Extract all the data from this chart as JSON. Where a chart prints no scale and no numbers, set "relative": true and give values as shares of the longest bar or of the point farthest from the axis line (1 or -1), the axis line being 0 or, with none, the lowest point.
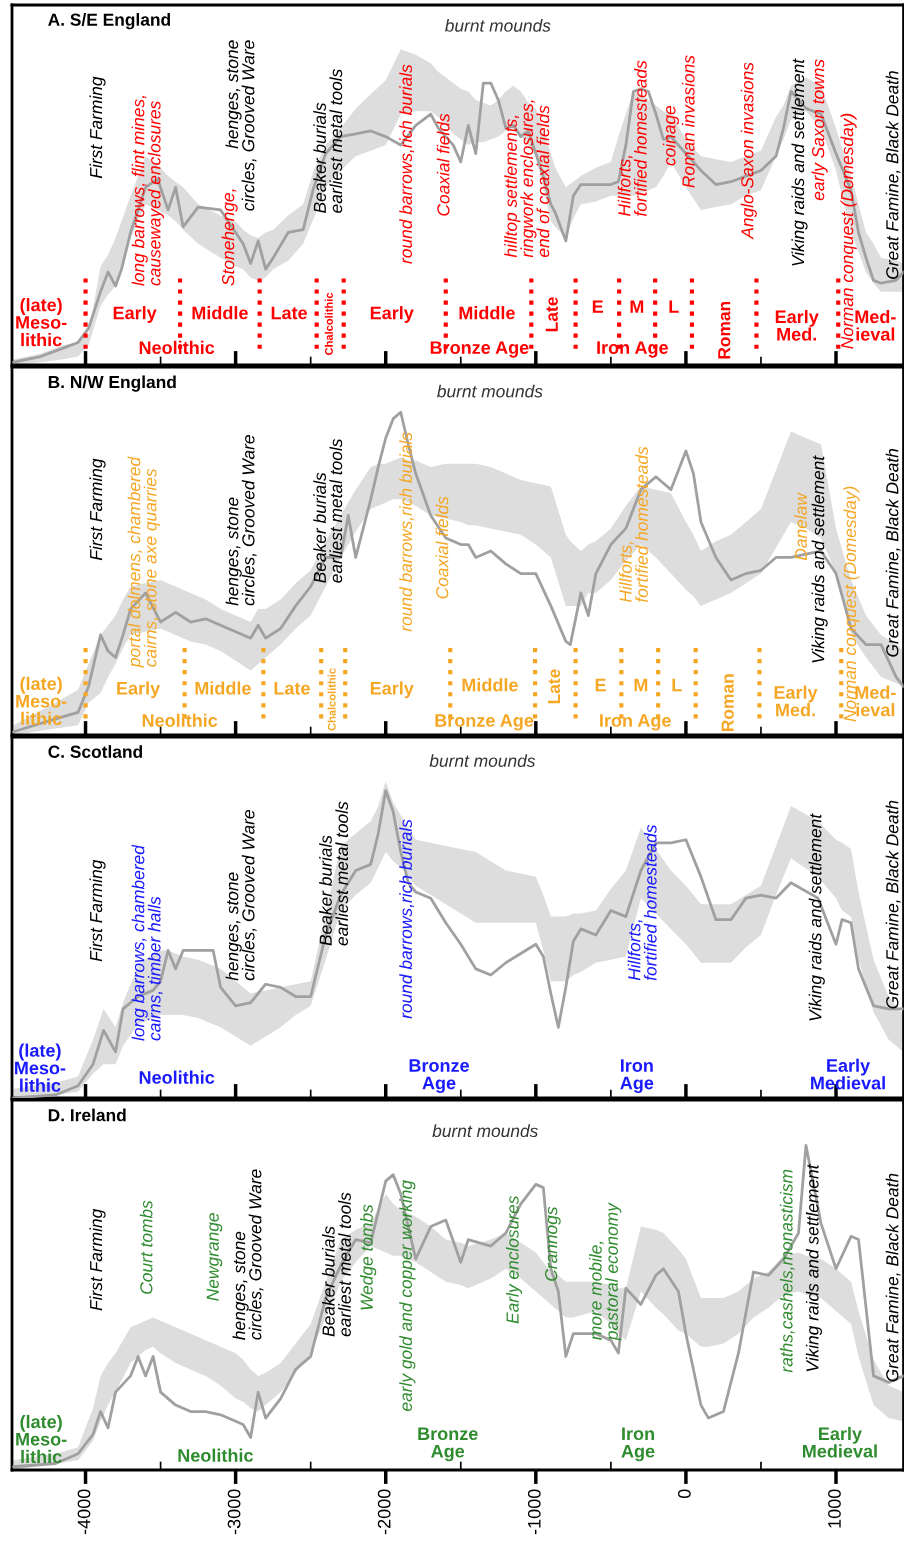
{
  "chart_data": [
    {
      "type": "line",
      "title": "A. S/E England",
      "relative": true,
      "xlim": [
        -4490,
        1450
      ],
      "xticks": [
        -4000,
        {
          "value": -3500,
          "label": null
        },
        -3000,
        {
          "value": -2500,
          "label": null
        },
        -2000,
        {
          "value": -1500,
          "label": null
        },
        -1000,
        {
          "value": -500,
          "label": null
        },
        0,
        {
          "value": 500,
          "label": null
        },
        1000
      ],
      "tick_labels": false,
      "series": [
        {
          "color": "#a0a0a0",
          "x": [
            -4480,
            -4300,
            -4150,
            -4050,
            -3980,
            -3900,
            -3850,
            -3800,
            -3760,
            -3700,
            -3600,
            -3520,
            -3450,
            -3400,
            -3350,
            -3250,
            -3100,
            -3000,
            -2950,
            -2900,
            -2850,
            -2800,
            -2750,
            -2650,
            -2550,
            -2480,
            -2400,
            -2300,
            -2200,
            -2100,
            -2000,
            -1900,
            -1800,
            -1700,
            -1650,
            -1550,
            -1500,
            -1450,
            -1400,
            -1350,
            -1300,
            -1250,
            -1200,
            -1150,
            -1100,
            -1050,
            -1000,
            -950,
            -900,
            -870,
            -800,
            -750,
            -700,
            -600,
            -500,
            -450,
            -400,
            -350,
            -300,
            -250,
            -200,
            -150,
            -100,
            0,
            100,
            200,
            300,
            400,
            500,
            600,
            650,
            700,
            800,
            900,
            1000,
            1100,
            1150,
            1200,
            1250,
            1300,
            1400,
            1450
          ],
          "values": [
            0.01,
            0.03,
            0.06,
            0.08,
            0.13,
            0.26,
            0.33,
            0.28,
            0.34,
            0.47,
            0.63,
            0.66,
            0.55,
            0.63,
            0.49,
            0.56,
            0.55,
            0.47,
            0.43,
            0.36,
            0.44,
            0.34,
            0.38,
            0.47,
            0.48,
            0.63,
            0.75,
            0.81,
            0.82,
            0.83,
            0.81,
            0.78,
            0.85,
            0.89,
            0.84,
            0.78,
            0.72,
            0.85,
            0.75,
            1.0,
            1.0,
            0.94,
            0.84,
            0.85,
            0.81,
            0.83,
            0.75,
            0.67,
            0.57,
            0.54,
            0.44,
            0.6,
            0.64,
            0.64,
            0.64,
            0.65,
            0.78,
            0.97,
            0.98,
            0.97,
            0.89,
            0.8,
            0.81,
            0.75,
            0.69,
            0.64,
            0.65,
            0.67,
            0.69,
            0.74,
            0.84,
            0.97,
            0.91,
            0.89,
            0.75,
            0.62,
            0.47,
            0.38,
            0.3,
            0.29,
            0.3,
            0.33
          ],
          "lower": [
            0.0,
            0.01,
            0.02,
            0.03,
            0.07,
            0.21,
            0.25,
            0.28,
            0.35,
            0.45,
            0.57,
            0.55,
            0.53,
            0.51,
            0.48,
            0.43,
            0.38,
            0.35,
            0.34,
            0.31,
            0.3,
            0.31,
            0.34,
            0.37,
            0.43,
            0.52,
            0.63,
            0.69,
            0.74,
            0.76,
            0.78,
            0.89,
            0.9,
            0.9,
            0.88,
            0.82,
            0.8,
            0.78,
            0.79,
            0.79,
            0.8,
            0.81,
            0.83,
            0.84,
            0.81,
            0.78,
            0.74,
            0.63,
            0.51,
            0.49,
            0.45,
            0.52,
            0.57,
            0.58,
            0.6,
            0.6,
            0.6,
            0.6,
            0.61,
            0.62,
            0.63,
            0.67,
            0.72,
            0.63,
            0.55,
            0.56,
            0.57,
            0.6,
            0.62,
            0.74,
            0.8,
            0.87,
            0.9,
            0.84,
            0.69,
            0.47,
            0.4,
            0.33,
            0.29,
            0.26,
            0.26,
            0.26
          ],
          "upper": [
            0.02,
            0.04,
            0.07,
            0.08,
            0.11,
            0.35,
            0.39,
            0.45,
            0.51,
            0.6,
            0.74,
            0.71,
            0.67,
            0.65,
            0.63,
            0.57,
            0.53,
            0.51,
            0.48,
            0.46,
            0.45,
            0.47,
            0.48,
            0.53,
            0.57,
            0.69,
            0.78,
            0.84,
            0.91,
            0.96,
            1.01,
            1.12,
            1.1,
            1.07,
            1.04,
            1.0,
            0.98,
            0.97,
            0.94,
            0.93,
            0.92,
            0.94,
            0.97,
            0.99,
            0.97,
            0.93,
            0.91,
            0.83,
            0.75,
            0.7,
            0.63,
            0.65,
            0.67,
            0.7,
            0.72,
            0.81,
            0.89,
            0.97,
            0.96,
            0.94,
            0.92,
            0.9,
            0.89,
            0.8,
            0.74,
            0.73,
            0.72,
            0.74,
            0.76,
            0.88,
            0.92,
            0.99,
            1.02,
            0.99,
            0.84,
            0.67,
            0.57,
            0.47,
            0.43,
            0.38,
            0.37,
            0.36
          ]
        }
      ],
      "ref_lines": [
        {
          "axis": "x",
          "value": -4000,
          "color": "#ff0000",
          "line_style": "dotted"
        },
        {
          "axis": "x",
          "value": -3370,
          "color": "#ff0000",
          "line_style": "dotted"
        },
        {
          "axis": "x",
          "value": -2840,
          "color": "#ff0000",
          "line_style": "dotted"
        },
        {
          "axis": "x",
          "value": -2460,
          "color": "#ff0000",
          "line_style": "dotted"
        },
        {
          "axis": "x",
          "value": -2280,
          "color": "#ff0000",
          "line_style": "dotted"
        },
        {
          "axis": "x",
          "value": -1600,
          "color": "#ff0000",
          "line_style": "dotted"
        },
        {
          "axis": "x",
          "value": -1030,
          "color": "#ff0000",
          "line_style": "dotted"
        },
        {
          "axis": "x",
          "value": -735,
          "color": "#ff0000",
          "line_style": "dotted"
        },
        {
          "axis": "x",
          "value": -445,
          "color": "#ff0000",
          "line_style": "dotted"
        },
        {
          "axis": "x",
          "value": -205,
          "color": "#ff0000",
          "line_style": "dotted"
        },
        {
          "axis": "x",
          "value": 40,
          "color": "#ff0000",
          "line_style": "dotted"
        },
        {
          "axis": "x",
          "value": 470,
          "color": "#ff0000",
          "line_style": "dotted"
        },
        {
          "axis": "x",
          "value": 1015,
          "color": "#ff0000",
          "line_style": "dotted"
        }
      ],
      "annotations": [
        "First Farming",
        "long barrows, flint mines,\ncausewayed enclosures",
        "Stonehenge,",
        "henges, stone\ncircles, Grooved Ware",
        "Beaker burials\nearliest metal tools",
        "round barrows,rich burials",
        "Coaxial fields",
        "burnt mounds",
        "hilltop settlements,\nringwork enclosures,\nend of coaxial fields",
        "Hillforts,\nfortified homesteads",
        "coinage",
        "Roman invasions",
        "Anglo-Saxon invasions",
        "Viking raids and settlement",
        "early Saxon towns",
        "Norman conquest (Domesday)",
        "Great Famine, Black Death",
        "(late)\nMeso-\nlithic",
        "Early",
        "Middle",
        "Late",
        "Chalcolithic",
        "Early",
        "Middle",
        "Late",
        "E",
        "M",
        "L",
        "Roman",
        "Early\nMed.",
        "Med-\nieval",
        "Neolithic",
        "Bronze Age",
        "Iron Age"
      ]
    },
    {
      "type": "line",
      "title": "B. N/W England",
      "relative": true,
      "xlim": [
        -4490,
        1450
      ],
      "xticks": [
        -4000,
        {
          "value": -3500,
          "label": null
        },
        -3000,
        {
          "value": -2500,
          "label": null
        },
        -2000,
        {
          "value": -1500,
          "label": null
        },
        -1000,
        {
          "value": -500,
          "label": null
        },
        0,
        {
          "value": 500,
          "label": null
        },
        1000
      ],
      "tick_labels": false,
      "series": [
        {
          "color": "#a0a0a0",
          "x": [
            -4480,
            -4200,
            -4050,
            -3980,
            -3900,
            -3850,
            -3800,
            -3750,
            -3700,
            -3600,
            -3500,
            -3400,
            -3300,
            -3200,
            -3100,
            -3000,
            -2900,
            -2850,
            -2800,
            -2700,
            -2600,
            -2500,
            -2400,
            -2300,
            -2250,
            -2200,
            -2100,
            -2050,
            -2000,
            -1950,
            -1900,
            -1850,
            -1800,
            -1700,
            -1600,
            -1500,
            -1450,
            -1400,
            -1300,
            -1200,
            -1100,
            -1000,
            -900,
            -800,
            -770,
            -700,
            -650,
            -600,
            -500,
            -400,
            -300,
            -200,
            -100,
            0,
            50,
            100,
            200,
            300,
            400,
            500,
            600,
            700,
            800,
            900,
            1000,
            1100,
            1200,
            1300,
            1400,
            1450
          ],
          "values": [
            0.01,
            0.05,
            0.07,
            0.15,
            0.31,
            0.26,
            0.24,
            0.31,
            0.39,
            0.44,
            0.35,
            0.38,
            0.35,
            0.36,
            0.34,
            0.32,
            0.3,
            0.34,
            0.3,
            0.33,
            0.4,
            0.46,
            0.55,
            0.55,
            0.68,
            0.55,
            0.73,
            0.83,
            0.92,
            0.98,
            1.0,
            0.9,
            0.81,
            0.68,
            0.61,
            0.59,
            0.59,
            0.55,
            0.57,
            0.53,
            0.5,
            0.5,
            0.4,
            0.29,
            0.28,
            0.44,
            0.37,
            0.5,
            0.59,
            0.64,
            0.76,
            0.8,
            0.76,
            0.88,
            0.81,
            0.66,
            0.55,
            0.48,
            0.5,
            0.51,
            0.55,
            0.55,
            0.56,
            0.57,
            0.5,
            0.33,
            0.28,
            0.28,
            0.18,
            0.15
          ],
          "lower": [
            0.0,
            0.02,
            0.03,
            0.1,
            0.13,
            0.18,
            0.22,
            0.27,
            0.31,
            0.32,
            0.33,
            0.31,
            0.29,
            0.28,
            0.26,
            0.23,
            0.2,
            0.22,
            0.24,
            0.28,
            0.33,
            0.37,
            0.46,
            0.55,
            0.59,
            0.63,
            0.7,
            0.71,
            0.72,
            0.73,
            0.73,
            0.72,
            0.71,
            0.68,
            0.67,
            0.66,
            0.65,
            0.65,
            0.64,
            0.63,
            0.62,
            0.59,
            0.55,
            0.4,
            0.4,
            0.4,
            0.44,
            0.44,
            0.48,
            0.54,
            0.59,
            0.55,
            0.5,
            0.45,
            0.43,
            0.4,
            0.42,
            0.44,
            0.47,
            0.5,
            0.58,
            0.66,
            0.64,
            0.61,
            0.5,
            0.31,
            0.24,
            0.18,
            0.16,
            0.15
          ],
          "upper": [
            0.03,
            0.1,
            0.14,
            0.22,
            0.31,
            0.34,
            0.37,
            0.42,
            0.46,
            0.47,
            0.48,
            0.46,
            0.44,
            0.42,
            0.39,
            0.37,
            0.35,
            0.39,
            0.39,
            0.42,
            0.47,
            0.51,
            0.6,
            0.68,
            0.72,
            0.76,
            0.83,
            0.84,
            0.84,
            0.85,
            0.86,
            0.85,
            0.85,
            0.83,
            0.84,
            0.84,
            0.84,
            0.84,
            0.83,
            0.81,
            0.79,
            0.78,
            0.77,
            0.62,
            0.6,
            0.57,
            0.59,
            0.6,
            0.64,
            0.71,
            0.77,
            0.76,
            0.75,
            0.66,
            0.62,
            0.57,
            0.6,
            0.62,
            0.66,
            0.7,
            0.82,
            0.94,
            0.92,
            0.9,
            0.64,
            0.48,
            0.37,
            0.31,
            0.28,
            0.26
          ]
        }
      ],
      "ref_lines": [
        {
          "axis": "x",
          "value": -4000,
          "color": "#f5a623",
          "line_style": "dotted"
        },
        {
          "axis": "x",
          "value": -3340,
          "color": "#f5a623",
          "line_style": "dotted"
        },
        {
          "axis": "x",
          "value": -2815,
          "color": "#f5a623",
          "line_style": "dotted"
        },
        {
          "axis": "x",
          "value": -2430,
          "color": "#f5a623",
          "line_style": "dotted"
        },
        {
          "axis": "x",
          "value": -2270,
          "color": "#f5a623",
          "line_style": "dotted"
        },
        {
          "axis": "x",
          "value": -1570,
          "color": "#f5a623",
          "line_style": "dotted"
        },
        {
          "axis": "x",
          "value": -1005,
          "color": "#f5a623",
          "line_style": "dotted"
        },
        {
          "axis": "x",
          "value": -735,
          "color": "#f5a623",
          "line_style": "dotted"
        },
        {
          "axis": "x",
          "value": -430,
          "color": "#f5a623",
          "line_style": "dotted"
        },
        {
          "axis": "x",
          "value": -185,
          "color": "#f5a623",
          "line_style": "dotted"
        },
        {
          "axis": "x",
          "value": 65,
          "color": "#f5a623",
          "line_style": "dotted"
        },
        {
          "axis": "x",
          "value": 490,
          "color": "#f5a623",
          "line_style": "dotted"
        },
        {
          "axis": "x",
          "value": 1035,
          "color": "#f5a623",
          "line_style": "dotted"
        }
      ],
      "annotations": [
        "First Farming",
        "portal dolmens, chambered\ncairns, stone axe quarries",
        "henges, stone\ncircles, Grooved Ware",
        "Beaker burials\nearliest metal tools",
        "round barrows,rich burials",
        "Coaxial fields",
        "burnt mounds",
        "Hillforts,\nfortified homesteads",
        "Danelaw",
        "Viking raids and settlement",
        "Norman conquest (Domesday)",
        "Great Famine, Black Death",
        "(late)\nMeso-\nlithic",
        "Early",
        "Middle",
        "Late",
        "Chalcolithic",
        "Early",
        "Middle",
        "Late",
        "E",
        "M",
        "L",
        "Roman",
        "Early\nMed.",
        "Med-\nieval",
        "Neolithic",
        "Bronze Age",
        "Iron Age"
      ]
    },
    {
      "type": "line",
      "title": "C. Scotland",
      "relative": true,
      "xlim": [
        -4490,
        1450
      ],
      "xticks": [
        -4000,
        {
          "value": -3500,
          "label": null
        },
        -3000,
        {
          "value": -2500,
          "label": null
        },
        -2000,
        {
          "value": -1500,
          "label": null
        },
        -1000,
        {
          "value": -500,
          "label": null
        },
        0,
        {
          "value": 500,
          "label": null
        },
        1000
      ],
      "tick_labels": false,
      "series": [
        {
          "color": "#a0a0a0",
          "x": [
            -4480,
            -4200,
            -4050,
            -3950,
            -3880,
            -3800,
            -3750,
            -3650,
            -3550,
            -3500,
            -3450,
            -3400,
            -3350,
            -3250,
            -3150,
            -3100,
            -3000,
            -2900,
            -2800,
            -2700,
            -2600,
            -2500,
            -2400,
            -2300,
            -2200,
            -2100,
            -2050,
            -2000,
            -1950,
            -1900,
            -1850,
            -1800,
            -1700,
            -1600,
            -1500,
            -1400,
            -1300,
            -1200,
            -1100,
            -1000,
            -950,
            -900,
            -850,
            -800,
            -750,
            -700,
            -600,
            -500,
            -400,
            -300,
            -200,
            -100,
            0,
            100,
            200,
            300,
            400,
            500,
            600,
            700,
            880,
            1000,
            1040,
            1100,
            1150,
            1250,
            1350,
            1450
          ],
          "values": [
            0.0,
            0.01,
            0.04,
            0.11,
            0.22,
            0.15,
            0.29,
            0.33,
            0.35,
            0.38,
            0.48,
            0.42,
            0.48,
            0.48,
            0.48,
            0.36,
            0.3,
            0.31,
            0.37,
            0.36,
            0.33,
            0.33,
            0.53,
            0.66,
            0.74,
            0.76,
            0.86,
            1.0,
            0.93,
            0.8,
            0.7,
            0.67,
            0.65,
            0.57,
            0.5,
            0.42,
            0.4,
            0.44,
            0.47,
            0.5,
            0.46,
            0.34,
            0.23,
            0.36,
            0.51,
            0.55,
            0.53,
            0.61,
            0.59,
            0.74,
            0.83,
            0.83,
            0.84,
            0.72,
            0.58,
            0.58,
            0.65,
            0.66,
            0.65,
            0.7,
            0.65,
            0.5,
            0.58,
            0.57,
            0.42,
            0.3,
            0.29,
            0.29
          ],
          "lower": [
            0.0,
            0.01,
            0.02,
            0.08,
            0.11,
            0.11,
            0.17,
            0.24,
            0.26,
            0.27,
            0.27,
            0.27,
            0.27,
            0.26,
            0.24,
            0.23,
            0.2,
            0.17,
            0.2,
            0.23,
            0.27,
            0.3,
            0.45,
            0.61,
            0.66,
            0.7,
            0.75,
            0.8,
            0.77,
            0.75,
            0.72,
            0.69,
            0.66,
            0.63,
            0.6,
            0.57,
            0.57,
            0.57,
            0.57,
            0.57,
            0.48,
            0.38,
            0.38,
            0.38,
            0.4,
            0.41,
            0.44,
            0.45,
            0.46,
            0.65,
            0.6,
            0.55,
            0.5,
            0.44,
            0.44,
            0.44,
            0.49,
            0.53,
            0.66,
            0.78,
            0.72,
            0.65,
            0.61,
            0.59,
            0.45,
            0.28,
            0.19,
            0.15
          ],
          "upper": [
            0.03,
            0.05,
            0.07,
            0.19,
            0.29,
            0.23,
            0.31,
            0.43,
            0.47,
            0.48,
            0.48,
            0.47,
            0.46,
            0.45,
            0.43,
            0.42,
            0.38,
            0.34,
            0.35,
            0.36,
            0.37,
            0.38,
            0.6,
            0.82,
            0.86,
            0.9,
            0.95,
            1.03,
            0.96,
            0.92,
            0.88,
            0.84,
            0.83,
            0.82,
            0.81,
            0.8,
            0.77,
            0.74,
            0.73,
            0.72,
            0.66,
            0.59,
            0.59,
            0.59,
            0.6,
            0.6,
            0.61,
            0.68,
            0.74,
            0.88,
            0.81,
            0.74,
            0.69,
            0.63,
            0.63,
            0.63,
            0.66,
            0.69,
            0.82,
            0.95,
            0.9,
            0.84,
            0.83,
            0.81,
            0.67,
            0.45,
            0.33,
            0.27
          ]
        }
      ],
      "annotations": [
        "First Farming",
        "long barrows, chambered\ncairns, timber halls",
        "henges, stone\ncircles, Grooved Ware",
        "Beaker burials\nearliest metal tools",
        "round barrows,rich burials",
        "burnt mounds",
        "Hillforts,\nfortified homesteads",
        "Viking raids and settlement",
        "Great Famine, Black Death",
        "(late)\nMeso-\nlithic",
        "Neolithic",
        "Bronze\nAge",
        "Iron\nAge",
        "Early\nMedieval"
      ]
    },
    {
      "type": "line",
      "title": "D. Ireland",
      "relative": true,
      "xlim": [
        -4490,
        1450
      ],
      "xticks": [
        -4000,
        {
          "value": -3500,
          "label": null
        },
        -3000,
        {
          "value": -2500,
          "label": null
        },
        -2000,
        {
          "value": -1500,
          "label": null
        },
        -1000,
        {
          "value": -500,
          "label": null
        },
        0,
        {
          "value": 500,
          "label": null
        },
        1000
      ],
      "tick_labels": "x",
      "series": [
        {
          "color": "#a0a0a0",
          "x": [
            -4480,
            -4200,
            -4050,
            -3950,
            -3900,
            -3850,
            -3800,
            -3700,
            -3650,
            -3600,
            -3550,
            -3500,
            -3400,
            -3300,
            -3200,
            -3100,
            -3000,
            -2950,
            -2900,
            -2850,
            -2800,
            -2700,
            -2600,
            -2500,
            -2400,
            -2300,
            -2200,
            -2100,
            -2000,
            -1950,
            -1900,
            -1800,
            -1700,
            -1600,
            -1500,
            -1450,
            -1300,
            -1200,
            -1100,
            -1000,
            -950,
            -900,
            -850,
            -800,
            -750,
            -600,
            -500,
            -450,
            -400,
            -300,
            -200,
            -150,
            -50,
            0,
            100,
            150,
            250,
            350,
            450,
            550,
            650,
            750,
            800,
            900,
            1000,
            1100,
            1150,
            1250,
            1350,
            1450
          ],
          "values": [
            0.01,
            0.02,
            0.05,
            0.11,
            0.18,
            0.13,
            0.24,
            0.29,
            0.35,
            0.29,
            0.35,
            0.24,
            0.2,
            0.18,
            0.18,
            0.17,
            0.15,
            0.14,
            0.1,
            0.24,
            0.16,
            0.22,
            0.31,
            0.35,
            0.53,
            0.63,
            0.71,
            0.7,
            0.89,
            0.91,
            0.85,
            0.65,
            0.75,
            0.77,
            0.64,
            0.71,
            0.69,
            0.73,
            0.82,
            0.88,
            0.87,
            0.62,
            0.55,
            0.35,
            0.42,
            0.42,
            0.4,
            0.36,
            0.56,
            0.51,
            0.6,
            0.62,
            0.55,
            0.42,
            0.2,
            0.16,
            0.18,
            0.36,
            0.61,
            0.6,
            0.65,
            0.73,
            1.0,
            0.76,
            0.62,
            0.72,
            0.71,
            0.29,
            0.27,
            0.29
          ],
          "lower": [
            0.0,
            0.02,
            0.03,
            0.09,
            0.15,
            0.2,
            0.24,
            0.33,
            0.35,
            0.37,
            0.38,
            0.36,
            0.33,
            0.31,
            0.29,
            0.26,
            0.22,
            0.21,
            0.19,
            0.18,
            0.2,
            0.24,
            0.3,
            0.36,
            0.47,
            0.58,
            0.64,
            0.69,
            0.67,
            0.66,
            0.66,
            0.64,
            0.61,
            0.58,
            0.57,
            0.56,
            0.59,
            0.62,
            0.59,
            0.55,
            0.53,
            0.51,
            0.49,
            0.47,
            0.47,
            0.49,
            0.45,
            0.42,
            0.4,
            0.55,
            0.5,
            0.48,
            0.43,
            0.42,
            0.38,
            0.38,
            0.39,
            0.42,
            0.47,
            0.5,
            0.54,
            0.55,
            0.54,
            0.53,
            0.49,
            0.45,
            0.35,
            0.2,
            0.16,
            0.15
          ],
          "upper": [
            0.03,
            0.05,
            0.07,
            0.19,
            0.29,
            0.33,
            0.36,
            0.44,
            0.45,
            0.46,
            0.47,
            0.46,
            0.44,
            0.42,
            0.4,
            0.38,
            0.36,
            0.34,
            0.31,
            0.29,
            0.3,
            0.33,
            0.39,
            0.45,
            0.58,
            0.71,
            0.74,
            0.76,
            0.85,
            0.82,
            0.8,
            0.78,
            0.75,
            0.71,
            0.7,
            0.69,
            0.71,
            0.73,
            0.7,
            0.67,
            0.64,
            0.61,
            0.6,
            0.58,
            0.58,
            0.58,
            0.57,
            0.56,
            0.56,
            0.75,
            0.74,
            0.73,
            0.68,
            0.65,
            0.53,
            0.53,
            0.53,
            0.55,
            0.59,
            0.61,
            0.66,
            0.67,
            0.66,
            0.65,
            0.62,
            0.58,
            0.49,
            0.34,
            0.26,
            0.24
          ]
        }
      ],
      "annotations": [
        "First Farming",
        "Court tombs",
        "Newgrange",
        "henges, stone\ncircles, Grooved Ware",
        "Beaker burials\nearliest metal tools",
        "Wedge tombs",
        "early gold and copper working",
        "burnt mounds",
        "Early enclosures",
        "Crannogs",
        "more mobile,\npastoral economy",
        "raths,cashels,monasticism",
        "Viking raids and settlement",
        "Great Famine, Black Death",
        "(late)\nMeso-\nlithic",
        "Neolithic",
        "Bronze\nAge",
        "Iron\nAge",
        "Early\nMedieval"
      ]
    }
  ]
}
